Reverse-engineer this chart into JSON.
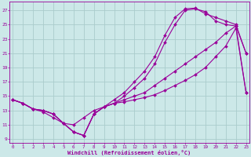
{
  "bg_color": "#cce8e8",
  "grid_color": "#aacccc",
  "line_color": "#990099",
  "xlabel": "Windchill (Refroidissement éolien,°C)",
  "ylabel_ticks": [
    9,
    11,
    13,
    15,
    17,
    19,
    21,
    23,
    25,
    27
  ],
  "xlabel_ticks": [
    0,
    1,
    2,
    3,
    4,
    5,
    6,
    7,
    8,
    9,
    10,
    11,
    12,
    13,
    14,
    15,
    16,
    17,
    18,
    19,
    20,
    21,
    22,
    23
  ],
  "xlim": [
    -0.3,
    23.3
  ],
  "ylim": [
    8.5,
    28.2
  ],
  "line1_x": [
    0,
    1,
    2,
    3,
    4,
    5,
    6,
    7,
    8,
    9,
    10,
    11,
    12,
    13,
    14,
    15,
    16,
    17,
    18,
    19,
    20,
    21,
    22,
    23
  ],
  "line1_y": [
    14.5,
    14.0,
    13.2,
    13.0,
    12.5,
    11.2,
    10.0,
    9.5,
    12.5,
    13.5,
    14.0,
    15.0,
    16.2,
    17.5,
    19.5,
    22.5,
    25.0,
    27.0,
    27.2,
    26.8,
    25.5,
    25.0,
    24.8,
    21.0
  ],
  "line2_x": [
    0,
    1,
    2,
    3,
    4,
    5,
    6,
    7,
    8,
    9,
    10,
    11,
    12,
    13,
    14,
    15,
    16,
    17,
    18,
    19,
    20,
    21,
    22,
    23
  ],
  "line2_y": [
    14.5,
    14.0,
    13.2,
    13.0,
    12.5,
    11.2,
    10.0,
    9.5,
    12.5,
    13.5,
    14.5,
    15.5,
    17.0,
    18.5,
    20.5,
    23.5,
    26.0,
    27.2,
    27.3,
    26.5,
    26.0,
    25.5,
    25.0,
    21.0
  ],
  "line3_x": [
    0,
    1,
    2,
    3,
    4,
    5,
    6,
    7,
    8,
    9,
    10,
    11,
    12,
    13,
    14,
    15,
    16,
    17,
    18,
    19,
    20,
    21,
    22,
    23
  ],
  "line3_y": [
    14.5,
    14.0,
    13.2,
    13.0,
    12.5,
    11.2,
    10.0,
    9.5,
    12.5,
    13.5,
    14.0,
    14.5,
    15.0,
    15.5,
    16.5,
    17.5,
    18.5,
    19.5,
    20.5,
    21.5,
    22.5,
    23.8,
    24.8,
    15.5
  ],
  "line_bottom_x": [
    0,
    1,
    2,
    3,
    4,
    5,
    6,
    7,
    8,
    9,
    10,
    11,
    12,
    13,
    14,
    15,
    16,
    17,
    18,
    19,
    20,
    21,
    22,
    23
  ],
  "line_bottom_y": [
    14.5,
    14.0,
    13.2,
    12.8,
    12.0,
    11.2,
    11.0,
    12.0,
    13.0,
    13.5,
    14.0,
    14.2,
    14.5,
    14.8,
    15.2,
    15.8,
    16.5,
    17.2,
    18.0,
    19.0,
    20.5,
    22.0,
    24.5,
    15.5
  ]
}
